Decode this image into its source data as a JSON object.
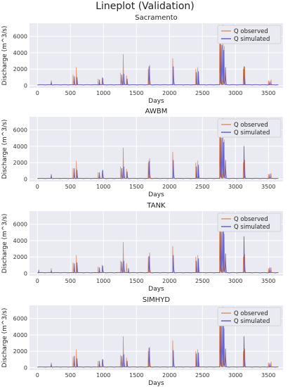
{
  "figure": {
    "title": "Lineplot (Validation)"
  },
  "colors": {
    "plot_bg": "#eaeaf2",
    "grid": "#ffffff",
    "observed": "#dd8452",
    "simulated": "#4c4cc8"
  },
  "chart_data": [
    {
      "type": "line",
      "title": "Sacramento",
      "xlabel": "Days",
      "ylabel": "Discharge (m^3/s)",
      "xlim": [
        -120,
        3720
      ],
      "ylim": [
        -300,
        7600
      ],
      "xticks": [
        0,
        500,
        1000,
        1500,
        2000,
        2500,
        3000,
        3500
      ],
      "yticks": [
        0,
        2000,
        4000,
        6000
      ],
      "grid": true,
      "legend_position": "top-right",
      "series": [
        {
          "name": "Q observed",
          "peaks": [
            [
              210,
              600
            ],
            [
              540,
              1300
            ],
            [
              590,
              2200
            ],
            [
              920,
              800
            ],
            [
              980,
              1000
            ],
            [
              1260,
              1500
            ],
            [
              1300,
              3800
            ],
            [
              1350,
              1200
            ],
            [
              1680,
              2000
            ],
            [
              1700,
              2500
            ],
            [
              2050,
              3300
            ],
            [
              2400,
              2000
            ],
            [
              2430,
              2200
            ],
            [
              2760,
              5500
            ],
            [
              2780,
              6400
            ],
            [
              2810,
              7400
            ],
            [
              2830,
              4800
            ],
            [
              3120,
              2000
            ],
            [
              3140,
              2300
            ],
            [
              3500,
              600
            ],
            [
              3540,
              700
            ]
          ]
        },
        {
          "name": "Q simulated",
          "peaks": [
            [
              210,
              400
            ],
            [
              560,
              1100
            ],
            [
              600,
              1000
            ],
            [
              940,
              700
            ],
            [
              990,
              900
            ],
            [
              1280,
              1300
            ],
            [
              1310,
              1400
            ],
            [
              1360,
              800
            ],
            [
              1690,
              2300
            ],
            [
              2060,
              2300
            ],
            [
              2410,
              1600
            ],
            [
              2440,
              1700
            ],
            [
              2770,
              5200
            ],
            [
              2795,
              6000
            ],
            [
              2820,
              4300
            ],
            [
              2850,
              2200
            ],
            [
              3130,
              2300
            ],
            [
              3520,
              500
            ]
          ]
        }
      ]
    },
    {
      "type": "line",
      "title": "AWBM",
      "xlabel": "Days",
      "ylabel": "Discharge (m^3/s)",
      "xlim": [
        -120,
        3720
      ],
      "ylim": [
        -300,
        7600
      ],
      "xticks": [
        0,
        500,
        1000,
        1500,
        2000,
        2500,
        3000,
        3500
      ],
      "yticks": [
        0,
        2000,
        4000,
        6000
      ],
      "grid": true,
      "legend_position": "top-right",
      "series": [
        {
          "name": "Q observed",
          "peaks": [
            [
              210,
              600
            ],
            [
              540,
              1300
            ],
            [
              590,
              2200
            ],
            [
              920,
              800
            ],
            [
              980,
              1000
            ],
            [
              1260,
              1500
            ],
            [
              1300,
              3800
            ],
            [
              1350,
              1200
            ],
            [
              1680,
              2000
            ],
            [
              1700,
              2500
            ],
            [
              2050,
              3300
            ],
            [
              2400,
              2000
            ],
            [
              2430,
              2200
            ],
            [
              2760,
              5500
            ],
            [
              2780,
              6400
            ],
            [
              2810,
              7400
            ],
            [
              2830,
              4800
            ],
            [
              3120,
              2000
            ],
            [
              3140,
              2300
            ],
            [
              3500,
              600
            ],
            [
              3540,
              700
            ]
          ]
        },
        {
          "name": "Q simulated",
          "peaks": [
            [
              210,
              500
            ],
            [
              560,
              1300
            ],
            [
              600,
              1100
            ],
            [
              940,
              800
            ],
            [
              990,
              1100
            ],
            [
              1280,
              1300
            ],
            [
              1310,
              1500
            ],
            [
              1360,
              900
            ],
            [
              1690,
              2200
            ],
            [
              2060,
              2300
            ],
            [
              2410,
              1500
            ],
            [
              2440,
              1700
            ],
            [
              2770,
              5300
            ],
            [
              2795,
              6100
            ],
            [
              2820,
              4500
            ],
            [
              2850,
              2300
            ],
            [
              3130,
              4000
            ],
            [
              3520,
              600
            ]
          ]
        }
      ]
    },
    {
      "type": "line",
      "title": "TANK",
      "xlabel": "Days",
      "ylabel": "Discharge (m^3/s)",
      "xlim": [
        -120,
        3720
      ],
      "ylim": [
        -300,
        7600
      ],
      "xticks": [
        0,
        500,
        1000,
        1500,
        2000,
        2500,
        3000,
        3500
      ],
      "yticks": [
        0,
        2000,
        4000,
        6000
      ],
      "grid": true,
      "legend_position": "top-right",
      "series": [
        {
          "name": "Q observed",
          "peaks": [
            [
              210,
              600
            ],
            [
              540,
              1300
            ],
            [
              590,
              2200
            ],
            [
              920,
              800
            ],
            [
              980,
              1000
            ],
            [
              1260,
              1500
            ],
            [
              1300,
              3800
            ],
            [
              1350,
              1200
            ],
            [
              1680,
              2000
            ],
            [
              1700,
              2500
            ],
            [
              2050,
              3300
            ],
            [
              2400,
              2000
            ],
            [
              2430,
              2200
            ],
            [
              2760,
              5500
            ],
            [
              2780,
              6400
            ],
            [
              2810,
              7400
            ],
            [
              2830,
              4800
            ],
            [
              3120,
              2000
            ],
            [
              3140,
              2300
            ],
            [
              3500,
              600
            ],
            [
              3540,
              700
            ]
          ]
        },
        {
          "name": "Q simulated",
          "peaks": [
            [
              20,
              400
            ],
            [
              210,
              300
            ],
            [
              560,
              1200
            ],
            [
              600,
              1300
            ],
            [
              940,
              700
            ],
            [
              990,
              900
            ],
            [
              1280,
              1400
            ],
            [
              1310,
              1500
            ],
            [
              1380,
              600
            ],
            [
              1690,
              2100
            ],
            [
              2060,
              2200
            ],
            [
              2410,
              1500
            ],
            [
              2440,
              1800
            ],
            [
              2770,
              5400
            ],
            [
              2795,
              6200
            ],
            [
              2820,
              5400
            ],
            [
              2850,
              2400
            ],
            [
              3130,
              4500
            ],
            [
              3520,
              700
            ]
          ]
        }
      ]
    },
    {
      "type": "line",
      "title": "SIMHYD",
      "xlabel": "Days",
      "ylabel": "Discharge (m^3/s)",
      "xlim": [
        -120,
        3720
      ],
      "ylim": [
        -300,
        7600
      ],
      "xticks": [
        0,
        500,
        1000,
        1500,
        2000,
        2500,
        3000,
        3500
      ],
      "yticks": [
        0,
        2000,
        4000,
        6000
      ],
      "grid": true,
      "legend_position": "top-right",
      "series": [
        {
          "name": "Q observed",
          "peaks": [
            [
              210,
              600
            ],
            [
              540,
              1300
            ],
            [
              590,
              2200
            ],
            [
              920,
              800
            ],
            [
              980,
              1000
            ],
            [
              1260,
              1500
            ],
            [
              1300,
              3800
            ],
            [
              1350,
              1200
            ],
            [
              1680,
              2000
            ],
            [
              1700,
              2500
            ],
            [
              2050,
              3300
            ],
            [
              2400,
              2000
            ],
            [
              2430,
              2200
            ],
            [
              2760,
              5500
            ],
            [
              2780,
              6400
            ],
            [
              2810,
              7400
            ],
            [
              2830,
              4800
            ],
            [
              3120,
              2000
            ],
            [
              3140,
              2300
            ],
            [
              3500,
              600
            ],
            [
              3540,
              700
            ]
          ]
        },
        {
          "name": "Q simulated",
          "peaks": [
            [
              210,
              400
            ],
            [
              560,
              1400
            ],
            [
              600,
              1100
            ],
            [
              940,
              800
            ],
            [
              990,
              1000
            ],
            [
              1280,
              1400
            ],
            [
              1310,
              1600
            ],
            [
              1360,
              800
            ],
            [
              1690,
              2400
            ],
            [
              2060,
              2100
            ],
            [
              2410,
              1700
            ],
            [
              2440,
              1800
            ],
            [
              2770,
              5800
            ],
            [
              2795,
              6600
            ],
            [
              2820,
              5200
            ],
            [
              2850,
              2300
            ],
            [
              3130,
              3800
            ],
            [
              3520,
              500
            ]
          ]
        }
      ]
    }
  ]
}
